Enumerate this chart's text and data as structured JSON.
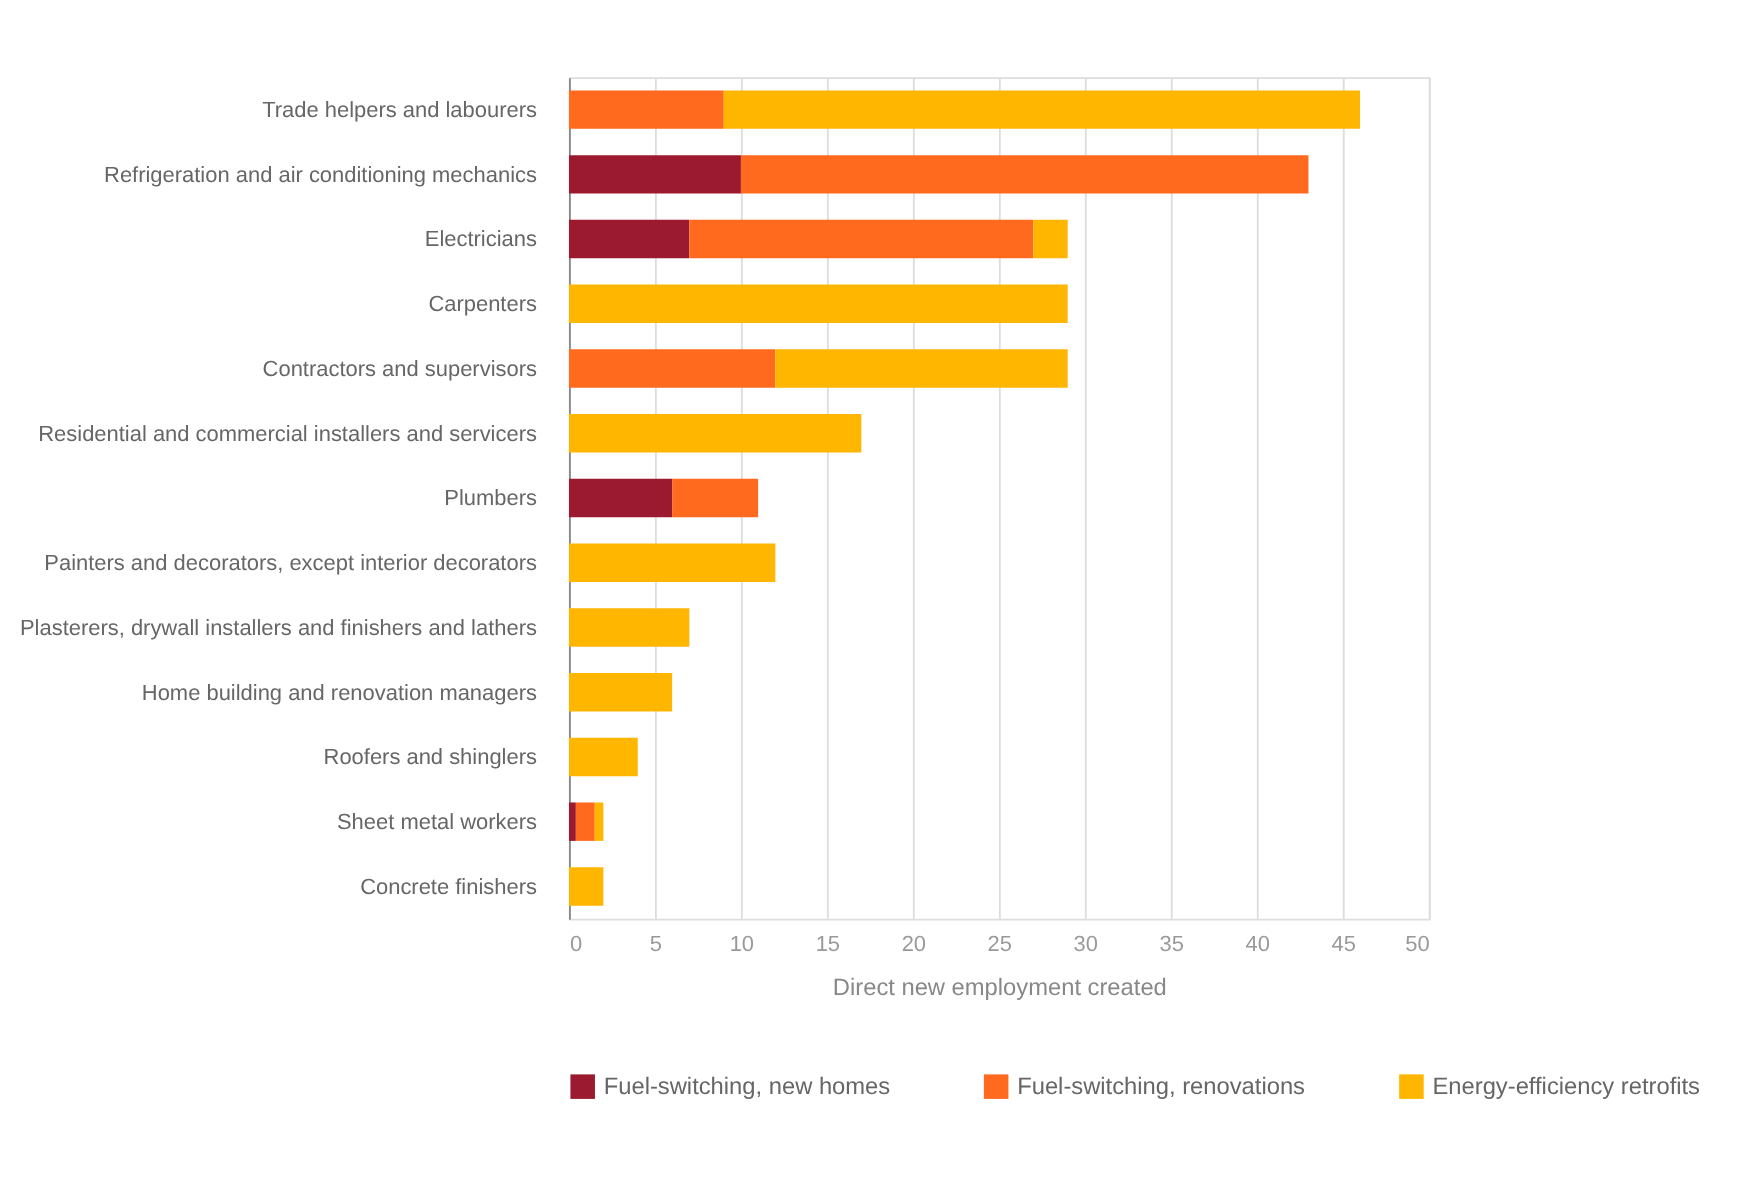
{
  "chart_data": {
    "type": "bar",
    "orientation": "horizontal",
    "stacked": true,
    "xlabel": "Direct new employment created",
    "categories": [
      "Trade helpers and labourers",
      "Refrigeration and air conditioning mechanics",
      "Electricians",
      "Carpenters",
      "Contractors and supervisors",
      "Residential and commercial installers and servicers",
      "Plumbers",
      "Painters and decorators, except interior decorators",
      "Plasterers, drywall installers and finishers and lathers",
      "Home building and renovation managers",
      "Roofers and shinglers",
      "Sheet metal workers",
      "Concrete finishers"
    ],
    "series": [
      {
        "name": "Fuel-switching, new homes",
        "color": "#9c1a2f",
        "values": [
          null,
          10,
          7,
          null,
          null,
          null,
          6,
          null,
          null,
          null,
          null,
          0.4,
          null
        ]
      },
      {
        "name": "Fuel-switching, renovations",
        "color": "#ff6a1f",
        "values": [
          9,
          33,
          20,
          null,
          12,
          null,
          5,
          null,
          null,
          null,
          null,
          1.1,
          null
        ]
      },
      {
        "name": "Energy-efficiency retrofits",
        "color": "#ffb600",
        "values": [
          37,
          null,
          2,
          29,
          17,
          17,
          null,
          12,
          7,
          6,
          4,
          0.5,
          2
        ]
      }
    ],
    "xlim": [
      0,
      50
    ],
    "xticks": [
      0,
      5,
      10,
      15,
      20,
      25,
      30,
      35,
      40,
      45,
      50
    ],
    "grid": "x",
    "legend": "bottom"
  }
}
